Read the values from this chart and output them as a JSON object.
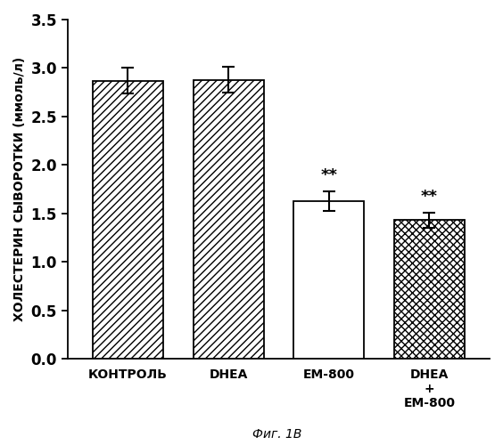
{
  "categories": [
    "КОНТРОЛЬ",
    "DHEA",
    "EM-800",
    "DHEA\n+\nEM-800"
  ],
  "values": [
    2.87,
    2.88,
    1.63,
    1.43
  ],
  "errors": [
    0.13,
    0.13,
    0.1,
    0.08
  ],
  "ylabel": "ХОЛЕСТЕРИН СЫВОРОТКИ (ммоль/л)",
  "ylim": [
    0,
    3.5
  ],
  "yticks": [
    0,
    0.5,
    1.0,
    1.5,
    2.0,
    2.5,
    3.0,
    3.5
  ],
  "caption": "Фиг. 1В",
  "significance": [
    false,
    false,
    true,
    true
  ],
  "sig_label": "**",
  "background_color": "#ffffff",
  "bar_edge_color": "#000000",
  "bar_width": 0.7,
  "hatch_patterns": [
    "////",
    "////",
    "",
    "xxxx"
  ],
  "bar_facecolors": [
    "#ffffff",
    "#ffffff",
    "#ffffff",
    "#ffffff"
  ],
  "ylabel_fontsize": 10,
  "tick_fontsize": 12,
  "xtick_fontsize": 10,
  "sig_fontsize": 13,
  "caption_fontsize": 10
}
